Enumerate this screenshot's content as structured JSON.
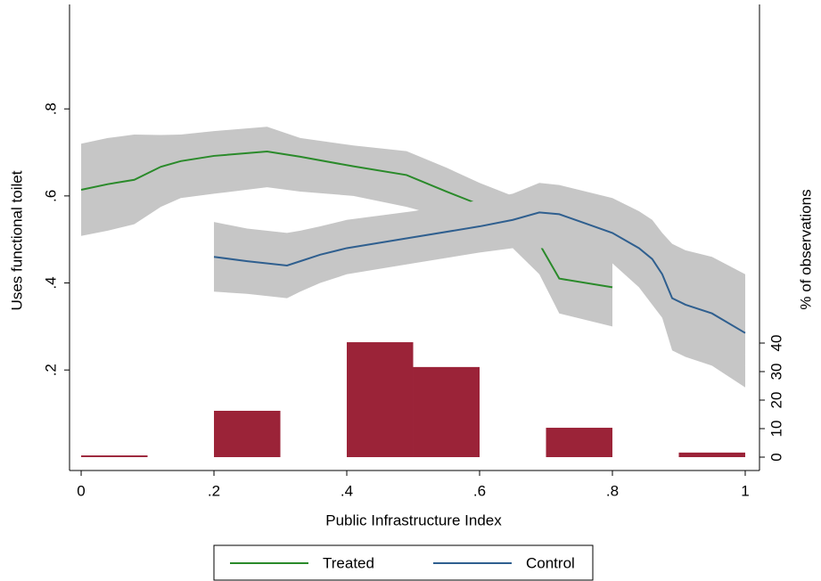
{
  "chart_data": {
    "type": "line",
    "xlabel": "Public Infrastructure Index",
    "ylabel": "Uses functional toilet",
    "y2label": "% of observations",
    "xlim": [
      -0.0175,
      1.0215
    ],
    "ylim": [
      -0.031,
      1.04
    ],
    "y2lim": [
      -4.69,
      158.75
    ],
    "xticks": [
      0,
      {
        "value": 0.2,
        "label": ".2"
      },
      {
        "value": 0.4,
        "label": ".4"
      },
      {
        "value": 0.6,
        "label": ".6"
      },
      {
        "value": 0.8,
        "label": ".8"
      },
      1
    ],
    "yticks": [
      {
        "value": 0.2,
        "label": ".2"
      },
      {
        "value": 0.4,
        "label": ".4"
      },
      {
        "value": 0.6,
        "label": ".6"
      },
      {
        "value": 0.8,
        "label": ".8"
      }
    ],
    "y2ticks": [
      0,
      10,
      20,
      30,
      40
    ],
    "band_color": "#c6c6c6",
    "legend": "bottom",
    "series": [
      {
        "name": "Treated",
        "color": "#2a8a2a",
        "x": [
          0,
          0.04,
          0.08,
          0.12,
          0.15,
          0.2,
          0.28,
          0.33,
          0.41,
          0.49,
          0.55,
          0.6,
          0.65,
          0.69,
          0.72,
          0.8
        ],
        "values": [
          0.614,
          0.627,
          0.637,
          0.667,
          0.68,
          0.692,
          0.702,
          0.69,
          0.668,
          0.648,
          0.61,
          0.58,
          0.545,
          0.49,
          0.41,
          0.39
        ],
        "ci_upper": [
          0.72,
          0.733,
          0.741,
          0.74,
          0.741,
          0.749,
          0.759,
          0.733,
          0.716,
          0.703,
          0.665,
          0.63,
          0.6,
          0.6,
          0.56,
          0.45
        ],
        "ci_lower": [
          0.508,
          0.52,
          0.535,
          0.575,
          0.595,
          0.605,
          0.62,
          0.61,
          0.6,
          0.575,
          0.55,
          0.52,
          0.48,
          0.42,
          0.33,
          0.3
        ]
      },
      {
        "name": "Control",
        "color": "#2f5f8f",
        "x": [
          0.2,
          0.25,
          0.31,
          0.33,
          0.36,
          0.4,
          0.5,
          0.6,
          0.65,
          0.69,
          0.72,
          0.8,
          0.84,
          0.86,
          0.875,
          0.89,
          0.91,
          0.95,
          1.0
        ],
        "values": [
          0.46,
          0.45,
          0.44,
          0.45,
          0.465,
          0.48,
          0.505,
          0.53,
          0.545,
          0.562,
          0.558,
          0.515,
          0.48,
          0.455,
          0.42,
          0.365,
          0.35,
          0.33,
          0.285
        ],
        "ci_upper": [
          0.54,
          0.525,
          0.515,
          0.52,
          0.53,
          0.545,
          0.565,
          0.59,
          0.605,
          0.63,
          0.625,
          0.595,
          0.565,
          0.545,
          0.515,
          0.49,
          0.475,
          0.46,
          0.42
        ],
        "ci_lower": [
          0.38,
          0.375,
          0.365,
          0.38,
          0.4,
          0.42,
          0.445,
          0.47,
          0.48,
          0.48,
          0.48,
          0.445,
          0.39,
          0.35,
          0.32,
          0.245,
          0.23,
          0.21,
          0.16
        ]
      }
    ],
    "histogram": {
      "axis": "y2",
      "color": "#9b2338",
      "bins": [
        0,
        0.1,
        0.2,
        0.3,
        0.4,
        0.5,
        0.6,
        0.7,
        0.8,
        0.9,
        1.0
      ],
      "values": [
        0.6,
        0,
        16.25,
        0,
        40.3,
        31.6,
        0,
        10.3,
        0,
        1.6
      ]
    }
  }
}
